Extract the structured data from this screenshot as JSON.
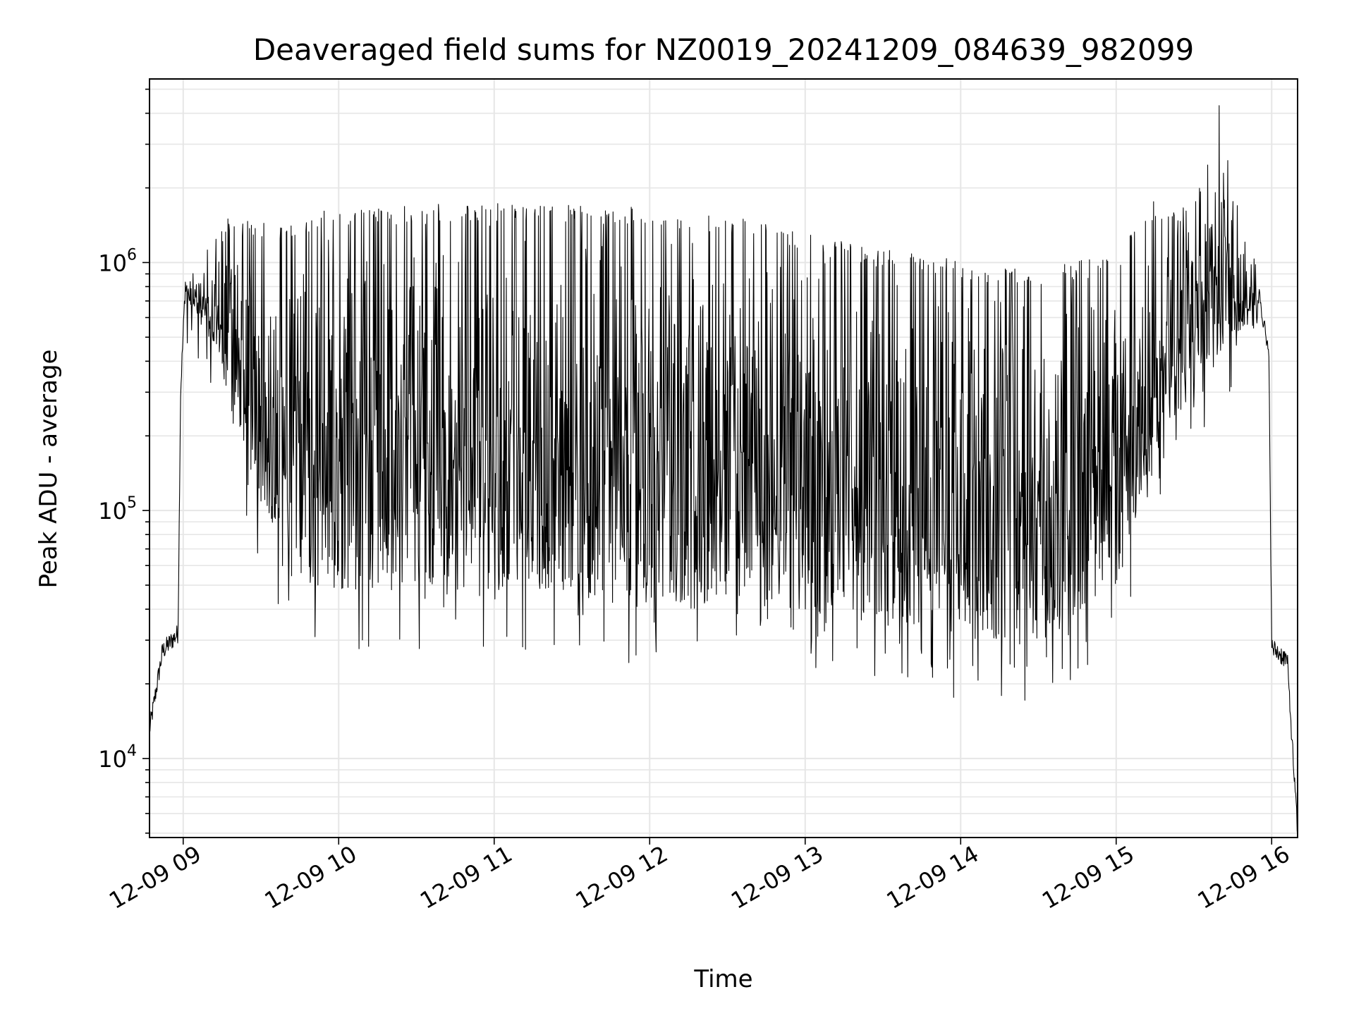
{
  "chart_data": {
    "type": "line",
    "title": "Deaveraged field sums for NZ0019_20241209_084639_982099",
    "xlabel": "Time",
    "ylabel": "Peak ADU - average",
    "y_scale": "log",
    "ylim": [
      4800,
      5500000
    ],
    "xlim": [
      "2024-12-09 08:47",
      "2024-12-09 16:10"
    ],
    "grid": true,
    "colors": {
      "line": "#000000",
      "grid": "#e6e6e6",
      "frame": "#000000",
      "background": "#ffffff"
    },
    "x_ticks": [
      {
        "value": "2024-12-09 09:00",
        "label": "12-09 09"
      },
      {
        "value": "2024-12-09 10:00",
        "label": "12-09 10"
      },
      {
        "value": "2024-12-09 11:00",
        "label": "12-09 11"
      },
      {
        "value": "2024-12-09 12:00",
        "label": "12-09 12"
      },
      {
        "value": "2024-12-09 13:00",
        "label": "12-09 13"
      },
      {
        "value": "2024-12-09 14:00",
        "label": "12-09 14"
      },
      {
        "value": "2024-12-09 15:00",
        "label": "12-09 15"
      },
      {
        "value": "2024-12-09 16:00",
        "label": "12-09 16"
      }
    ],
    "y_ticks": [
      {
        "value": 10000,
        "base": "10",
        "exp": "4"
      },
      {
        "value": 100000,
        "base": "10",
        "exp": "5"
      },
      {
        "value": 1000000,
        "base": "10",
        "exp": "6"
      }
    ],
    "series": [
      {
        "upper_envelope": [
          {
            "t": "2024-12-09 08:47",
            "v": 13000
          },
          {
            "t": "2024-12-09 08:52",
            "v": 27000
          },
          {
            "t": "2024-12-09 08:58",
            "v": 32000
          },
          {
            "t": "2024-12-09 08:59",
            "v": 300000
          },
          {
            "t": "2024-12-09 09:01",
            "v": 900000
          },
          {
            "t": "2024-12-09 09:07",
            "v": 950000
          },
          {
            "t": "2024-12-09 09:15",
            "v": 1300000
          },
          {
            "t": "2024-12-09 09:30",
            "v": 1200000
          },
          {
            "t": "2024-12-09 10:00",
            "v": 1400000
          },
          {
            "t": "2024-12-09 11:00",
            "v": 1450000
          },
          {
            "t": "2024-12-09 12:00",
            "v": 1400000
          },
          {
            "t": "2024-12-09 12:30",
            "v": 1300000
          },
          {
            "t": "2024-12-09 13:00",
            "v": 1100000
          },
          {
            "t": "2024-12-09 13:30",
            "v": 950000
          },
          {
            "t": "2024-12-09 14:00",
            "v": 850000
          },
          {
            "t": "2024-12-09 14:30",
            "v": 800000
          },
          {
            "t": "2024-12-09 15:00",
            "v": 900000
          },
          {
            "t": "2024-12-09 15:15",
            "v": 1500000
          },
          {
            "t": "2024-12-09 15:30",
            "v": 1400000
          },
          {
            "t": "2024-12-09 15:40",
            "v": 4000000
          },
          {
            "t": "2024-12-09 15:45",
            "v": 1600000
          },
          {
            "t": "2024-12-09 15:55",
            "v": 800000
          },
          {
            "t": "2024-12-09 15:59",
            "v": 400000
          },
          {
            "t": "2024-12-09 16:00",
            "v": 28000
          },
          {
            "t": "2024-12-09 16:06",
            "v": 25000
          },
          {
            "t": "2024-12-09 16:10",
            "v": 5000
          }
        ],
        "lower_envelope": [
          {
            "t": "2024-12-09 09:01",
            "v": 700000
          },
          {
            "t": "2024-12-09 09:10",
            "v": 500000
          },
          {
            "t": "2024-12-09 09:20",
            "v": 250000
          },
          {
            "t": "2024-12-09 09:30",
            "v": 100000
          },
          {
            "t": "2024-12-09 09:45",
            "v": 50000
          },
          {
            "t": "2024-12-09 10:00",
            "v": 45000
          },
          {
            "t": "2024-12-09 11:00",
            "v": 50000
          },
          {
            "t": "2024-12-09 12:00",
            "v": 40000
          },
          {
            "t": "2024-12-09 13:00",
            "v": 40000
          },
          {
            "t": "2024-12-09 14:00",
            "v": 30000
          },
          {
            "t": "2024-12-09 14:30",
            "v": 28000
          },
          {
            "t": "2024-12-09 15:00",
            "v": 50000
          },
          {
            "t": "2024-12-09 15:15",
            "v": 150000
          },
          {
            "t": "2024-12-09 15:30",
            "v": 300000
          },
          {
            "t": "2024-12-09 15:45",
            "v": 500000
          },
          {
            "t": "2024-12-09 15:55",
            "v": 550000
          }
        ]
      }
    ]
  }
}
